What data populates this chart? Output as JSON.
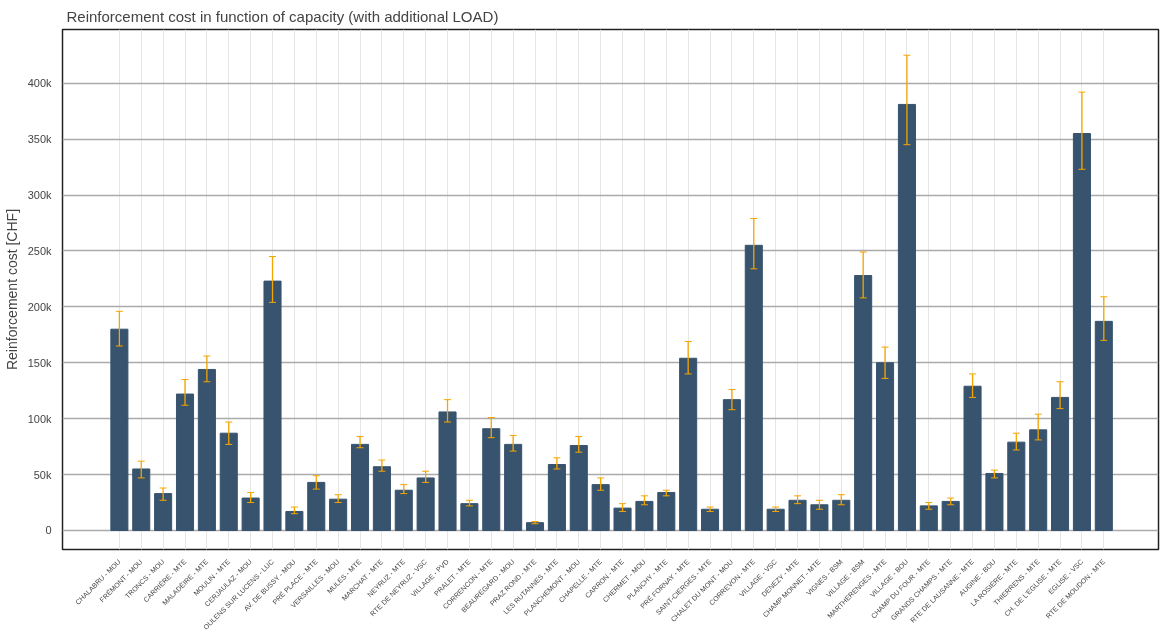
{
  "chart_data": {
    "type": "bar",
    "title": "Reinforcement cost in function of capacity (with additional LOAD)",
    "ylabel": "Reinforcement cost [CHF]",
    "categories": [
      "CHALABRU - MOU",
      "FRÉMONT - MOU",
      "TRONCS - MOU",
      "CARRIÈRE - MTE",
      "MALADÈIRE - MTE",
      "MOULIN - MTE",
      "CERJAULAZ - MOU",
      "OULENS SUR LUCENS - LUC",
      "AV. DE BUSSY - MOU",
      "PRÉ PLACE - MTE",
      "VERSAILLES - MOU",
      "MULES - MTE",
      "MARCHAT - MTE",
      "NEYRUZ - MTE",
      "RTE DE NEYRUZ - VSC",
      "VILLAGE - PVD",
      "PRALET - MTE",
      "CORRENCON - MTE",
      "BEAUREGARD - MOU",
      "PRAZ ROND - MTE",
      "LES RUTANNES - MTE",
      "PLANCHEMONT - MOU",
      "CHAPELLE - MTE",
      "CARRON - MTE",
      "CHERMET - MOU",
      "PLANCHY - MTE",
      "PRÉ FORNAY - MTE",
      "SAINT-CIERGES - MTE",
      "CHALET DU MONT - MOU",
      "CORREVON - MTE",
      "VILLAGE - VSC",
      "DENEZY - MTE",
      "CHAMP MONNET - MTE",
      "VIGNES - BSM",
      "VILLAGE - BSM",
      "MARTHERENGES - MTE",
      "VILLAGE - BOU",
      "CHAMP DU FOUR - MTE",
      "GRANDS CHAMPS - MTE",
      "RTE DE LAUSANNE - MTE",
      "AUGINE - BOU",
      "LA ROSIÈRE - MTE",
      "THIERRENS - MTE",
      "CH. DE L'EGLISE - MTE",
      "EGLISE - VSC",
      "RTE DE MOUDON - MTE"
    ],
    "values": [
      180000,
      55000,
      33000,
      122000,
      144000,
      87000,
      29000,
      223000,
      17000,
      43000,
      28000,
      77000,
      57000,
      36000,
      47000,
      106000,
      24000,
      91000,
      77000,
      7000,
      59000,
      76000,
      41000,
      20000,
      26000,
      34000,
      154000,
      19000,
      117000,
      255000,
      19000,
      27000,
      23000,
      27000,
      228000,
      150000,
      381000,
      22000,
      26000,
      129000,
      51000,
      79000,
      90000,
      119000,
      355000,
      187000
    ],
    "color": "#37536e",
    "errors": [
      [
        165000,
        196000
      ],
      [
        47000,
        62000
      ],
      [
        27000,
        38000
      ],
      [
        112000,
        135000
      ],
      [
        133000,
        156000
      ],
      [
        77000,
        97000
      ],
      [
        25000,
        34000
      ],
      [
        204000,
        245000
      ],
      [
        15000,
        21000
      ],
      [
        37000,
        49000
      ],
      [
        25000,
        32000
      ],
      [
        74000,
        84000
      ],
      [
        53000,
        63000
      ],
      [
        33000,
        41000
      ],
      [
        43000,
        53000
      ],
      [
        97000,
        117000
      ],
      [
        22000,
        27000
      ],
      [
        83000,
        101000
      ],
      [
        71000,
        85000
      ],
      [
        6000,
        8000
      ],
      [
        55000,
        65000
      ],
      [
        70000,
        84000
      ],
      [
        36000,
        47000
      ],
      [
        17000,
        24000
      ],
      [
        23000,
        31000
      ],
      [
        31000,
        36000
      ],
      [
        140000,
        169000
      ],
      [
        17000,
        21000
      ],
      [
        108000,
        126000
      ],
      [
        234000,
        279000
      ],
      [
        17000,
        21000
      ],
      [
        24000,
        31000
      ],
      [
        19000,
        27000
      ],
      [
        23000,
        32000
      ],
      [
        208000,
        249000
      ],
      [
        136000,
        164000
      ],
      [
        345000,
        425000
      ],
      [
        19000,
        25000
      ],
      [
        23000,
        29000
      ],
      [
        119000,
        140000
      ],
      [
        47000,
        54000
      ],
      [
        72000,
        87000
      ],
      [
        81000,
        104000
      ],
      [
        109000,
        133000
      ],
      [
        323000,
        392000
      ],
      [
        170000,
        209000
      ]
    ],
    "ylim": [
      -17000,
      448000
    ],
    "yticks": [
      0,
      {
        "value": 50000,
        "label": "50k"
      },
      {
        "value": 100000,
        "label": "100k"
      },
      {
        "value": 150000,
        "label": "150k"
      },
      {
        "value": 200000,
        "label": "200k"
      },
      {
        "value": 250000,
        "label": "250k"
      },
      {
        "value": 300000,
        "label": "300k"
      },
      {
        "value": 350000,
        "label": "350k"
      },
      {
        "value": 400000,
        "label": "400k"
      }
    ],
    "grid": true
  }
}
